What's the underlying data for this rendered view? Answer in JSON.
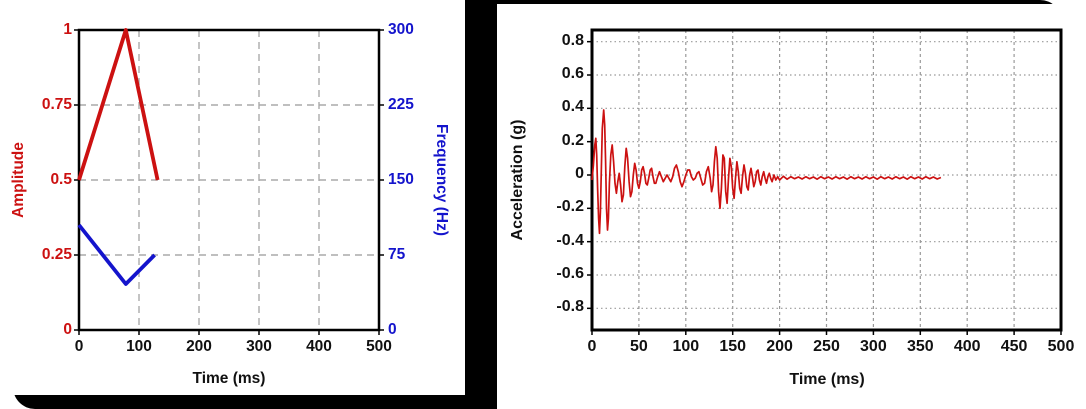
{
  "backdrop_color": "#000000",
  "chart_data": [
    {
      "type": "line",
      "title": "",
      "xlabel": "Time (ms)",
      "ylabel_left": "Amplitude",
      "ylabel_right": "Frequency (Hz)",
      "xlim": [
        0,
        500
      ],
      "ylim_left": [
        0,
        1
      ],
      "ylim_right": [
        0,
        300
      ],
      "x_ticks": [
        0,
        100,
        200,
        300,
        400,
        500
      ],
      "y_ticks_left": [
        "0",
        "0.25",
        "0.5",
        "0.75",
        "1"
      ],
      "y_ticks_right": [
        "0",
        "75",
        "150",
        "225",
        "300"
      ],
      "y_tick_vals_left": [
        0,
        0.25,
        0.5,
        0.75,
        1
      ],
      "y_tick_vals_right": [
        0,
        75,
        150,
        225,
        300
      ],
      "grid": "dashed-gray",
      "legend": "none",
      "colors": {
        "amplitude": "#cc1111",
        "frequency": "#1414cc",
        "grid": "#aaaaaa",
        "frame": "#000000",
        "text": "#111111"
      },
      "series": [
        {
          "name": "Amplitude",
          "axis": "left",
          "color": "#cc1111",
          "points": [
            [
              0,
              0.5
            ],
            [
              78,
              1.0
            ],
            [
              131,
              0.5
            ]
          ]
        },
        {
          "name": "Frequency (Hz)",
          "axis": "right",
          "color": "#1414cc",
          "points": [
            [
              0,
              105
            ],
            [
              78,
              46
            ],
            [
              126,
              75
            ]
          ]
        }
      ]
    },
    {
      "type": "line",
      "title": "",
      "xlabel": "Time (ms)",
      "ylabel": "Acceleration (g)",
      "xlim": [
        0,
        500
      ],
      "ylim": [
        -0.93,
        0.87
      ],
      "x_ticks": [
        0,
        50,
        100,
        150,
        200,
        250,
        300,
        350,
        400,
        450,
        500
      ],
      "y_ticks": [
        "0.8",
        "0.6",
        "0.4",
        "0.2",
        "0",
        "-0.2",
        "-0.4",
        "-0.6",
        "-0.8"
      ],
      "y_tick_vals": [
        0.8,
        0.6,
        0.4,
        0.2,
        0,
        -0.2,
        -0.4,
        -0.6,
        -0.8
      ],
      "grid": "dotted-gray",
      "legend": "none",
      "colors": {
        "acceleration": "#cc1111",
        "grid": "#999999",
        "frame": "#000000",
        "text": "#111111"
      },
      "series": [
        {
          "name": "Acceleration",
          "color": "#cc1111",
          "points": [
            [
              0,
              -0.03
            ],
            [
              1.5,
              0.06
            ],
            [
              3,
              0.18
            ],
            [
              4,
              0.22
            ],
            [
              5,
              0.12
            ],
            [
              6,
              -0.08
            ],
            [
              7,
              -0.26
            ],
            [
              8,
              -0.35
            ],
            [
              9,
              -0.22
            ],
            [
              10,
              0.05
            ],
            [
              11,
              0.28
            ],
            [
              12.5,
              0.39
            ],
            [
              13.5,
              0.3
            ],
            [
              14.5,
              0.08
            ],
            [
              15.5,
              -0.2
            ],
            [
              16.5,
              -0.33
            ],
            [
              17.5,
              -0.26
            ],
            [
              18.5,
              -0.05
            ],
            [
              20,
              0.12
            ],
            [
              21.5,
              0.18
            ],
            [
              23,
              0.08
            ],
            [
              24.5,
              -0.05
            ],
            [
              26,
              -0.11
            ],
            [
              27.5,
              -0.04
            ],
            [
              29,
              0.01
            ],
            [
              30.5,
              -0.06
            ],
            [
              32,
              -0.16
            ],
            [
              33.5,
              -0.12
            ],
            [
              35,
              0.05
            ],
            [
              36.5,
              0.16
            ],
            [
              38,
              0.1
            ],
            [
              39.5,
              -0.04
            ],
            [
              41,
              -0.13
            ],
            [
              42.5,
              -0.1
            ],
            [
              44,
              0
            ],
            [
              45.5,
              0.07
            ],
            [
              47,
              0.03
            ],
            [
              48.5,
              -0.05
            ],
            [
              50,
              -0.08
            ],
            [
              51.5,
              -0.04
            ],
            [
              53,
              0.03
            ],
            [
              54.5,
              0.05
            ],
            [
              56,
              0.01
            ],
            [
              57.5,
              -0.05
            ],
            [
              59,
              -0.06
            ],
            [
              60.5,
              -0.02
            ],
            [
              62,
              0.03
            ],
            [
              63.5,
              0.04
            ],
            [
              65,
              -0.01
            ],
            [
              66.5,
              -0.05
            ],
            [
              68,
              -0.05
            ],
            [
              70,
              -0.01
            ],
            [
              72,
              0.02
            ],
            [
              74,
              -0.01
            ],
            [
              76,
              -0.04
            ],
            [
              78,
              -0.02
            ],
            [
              80,
              0
            ],
            [
              82,
              -0.02
            ],
            [
              84,
              -0.04
            ],
            [
              86,
              -0.01
            ],
            [
              88,
              0.04
            ],
            [
              90,
              0.06
            ],
            [
              92,
              0.02
            ],
            [
              94,
              -0.04
            ],
            [
              96,
              -0.07
            ],
            [
              98,
              -0.04
            ],
            [
              100,
              0
            ],
            [
              102,
              0.03
            ],
            [
              104,
              0.03
            ],
            [
              106,
              -0.01
            ],
            [
              108,
              -0.03
            ],
            [
              110,
              -0.02
            ],
            [
              112,
              0.01
            ],
            [
              114,
              0.02
            ],
            [
              116,
              -0.02
            ],
            [
              118,
              -0.06
            ],
            [
              120,
              -0.05
            ],
            [
              122,
              0.02
            ],
            [
              124,
              0.05
            ],
            [
              126,
              -0.02
            ],
            [
              127.5,
              -0.1
            ],
            [
              129,
              -0.06
            ],
            [
              130.5,
              0.08
            ],
            [
              132,
              0.17
            ],
            [
              133.5,
              0.1
            ],
            [
              135,
              -0.1
            ],
            [
              136.5,
              -0.2
            ],
            [
              138,
              -0.08
            ],
            [
              139.5,
              0.12
            ],
            [
              141,
              0.1
            ],
            [
              142.5,
              -0.1
            ],
            [
              144,
              -0.17
            ],
            [
              145.5,
              -0.02
            ],
            [
              147,
              0.1
            ],
            [
              148.5,
              0.05
            ],
            [
              150,
              -0.08
            ],
            [
              151.5,
              -0.14
            ],
            [
              153,
              -0.02
            ],
            [
              154.5,
              0.08
            ],
            [
              156,
              0.02
            ],
            [
              157.5,
              -0.08
            ],
            [
              159,
              -0.11
            ],
            [
              160.5,
              -0.01
            ],
            [
              162,
              0.06
            ],
            [
              163.5,
              0.01
            ],
            [
              165,
              -0.07
            ],
            [
              166.5,
              -0.09
            ],
            [
              168,
              0
            ],
            [
              169.5,
              0.04
            ],
            [
              171,
              -0.01
            ],
            [
              172.5,
              -0.07
            ],
            [
              174,
              -0.04
            ],
            [
              175.5,
              0.02
            ],
            [
              177,
              0.03
            ],
            [
              178.5,
              -0.03
            ],
            [
              180,
              -0.06
            ],
            [
              181.5,
              -0.01
            ],
            [
              183,
              0.02
            ],
            [
              184.5,
              -0.02
            ],
            [
              186,
              -0.05
            ],
            [
              187.5,
              -0.01
            ],
            [
              189,
              0.01
            ],
            [
              190.5,
              -0.02
            ],
            [
              192,
              -0.04
            ],
            [
              194,
              0
            ],
            [
              196,
              -0.03
            ],
            [
              198,
              -0.01
            ],
            [
              200,
              -0.03
            ],
            [
              204,
              -0.008
            ],
            [
              208,
              -0.025
            ],
            [
              212,
              -0.01
            ],
            [
              216,
              -0.022
            ],
            [
              220,
              -0.012
            ],
            [
              224,
              -0.024
            ],
            [
              228,
              -0.01
            ],
            [
              232,
              -0.022
            ],
            [
              236,
              -0.012
            ],
            [
              240,
              -0.025
            ],
            [
              244,
              -0.01
            ],
            [
              248,
              -0.022
            ],
            [
              252,
              -0.012
            ],
            [
              256,
              -0.024
            ],
            [
              260,
              -0.01
            ],
            [
              264,
              -0.022
            ],
            [
              268,
              -0.012
            ],
            [
              272,
              -0.025
            ],
            [
              276,
              -0.01
            ],
            [
              280,
              -0.022
            ],
            [
              284,
              -0.012
            ],
            [
              288,
              -0.024
            ],
            [
              292,
              -0.01
            ],
            [
              296,
              -0.022
            ],
            [
              300,
              -0.012
            ],
            [
              304,
              -0.025
            ],
            [
              308,
              -0.01
            ],
            [
              312,
              -0.022
            ],
            [
              316,
              -0.012
            ],
            [
              320,
              -0.024
            ],
            [
              324,
              -0.01
            ],
            [
              328,
              -0.022
            ],
            [
              332,
              -0.012
            ],
            [
              336,
              -0.025
            ],
            [
              340,
              -0.01
            ],
            [
              344,
              -0.022
            ],
            [
              348,
              -0.012
            ],
            [
              352,
              -0.024
            ],
            [
              356,
              -0.01
            ],
            [
              360,
              -0.022
            ],
            [
              364,
              -0.012
            ],
            [
              368,
              -0.024
            ],
            [
              372,
              -0.015
            ]
          ]
        }
      ]
    }
  ]
}
